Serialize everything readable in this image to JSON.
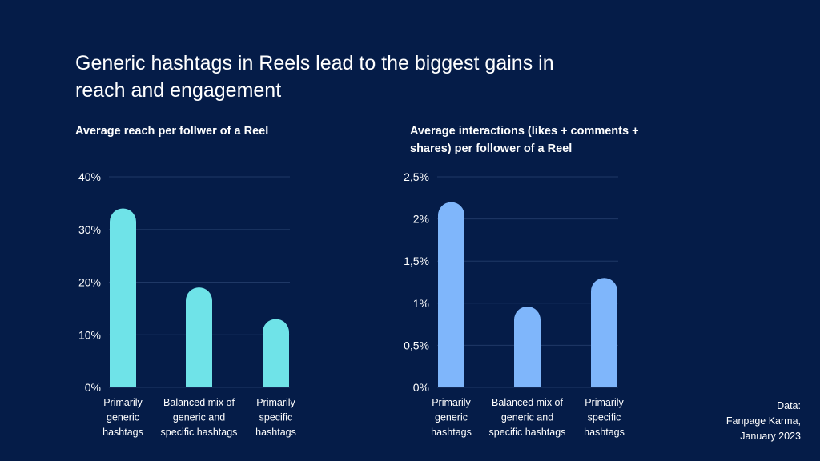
{
  "headline": "Generic hashtags in Reels lead to the biggest gains in reach and engagement",
  "source": {
    "label": "Data:",
    "line1": "Fanpage Karma,",
    "line2": "January 2023"
  },
  "colors": {
    "background": "#051c48",
    "grid": "#1f3866",
    "bar_left": "#6fe3e8",
    "bar_right": "#7fb6fb"
  },
  "chart_data": [
    {
      "type": "bar",
      "title": "Average reach per follwer of a Reel",
      "xlabel": "",
      "ylabel": "",
      "ylim": [
        0,
        40
      ],
      "yticks": [
        0,
        10,
        20,
        30,
        40
      ],
      "ytick_labels": [
        "0%",
        "10%",
        "20%",
        "30%",
        "40%"
      ],
      "categories": [
        [
          "Primarily",
          "generic",
          "hashtags"
        ],
        [
          "Balanced mix of",
          "generic and",
          "specific hashtags"
        ],
        [
          "Primarily",
          "specific",
          "hashtags"
        ]
      ],
      "values": [
        34,
        19,
        13
      ],
      "grid": true
    },
    {
      "type": "bar",
      "title": "Average interactions (likes + comments + shares) per follower of a Reel",
      "xlabel": "",
      "ylabel": "",
      "ylim": [
        0,
        2.5
      ],
      "yticks": [
        0,
        0.5,
        1,
        1.5,
        2,
        2.5
      ],
      "ytick_labels": [
        "0%",
        "0,5%",
        "1%",
        "1,5%",
        "2%",
        "2,5%"
      ],
      "categories": [
        [
          "Primarily",
          "generic",
          "hashtags"
        ],
        [
          "Balanced mix of",
          "generic and",
          "specific hashtags"
        ],
        [
          "Primarily",
          "specific",
          "hashtags"
        ]
      ],
      "values": [
        2.2,
        0.96,
        1.3
      ],
      "grid": true
    }
  ]
}
